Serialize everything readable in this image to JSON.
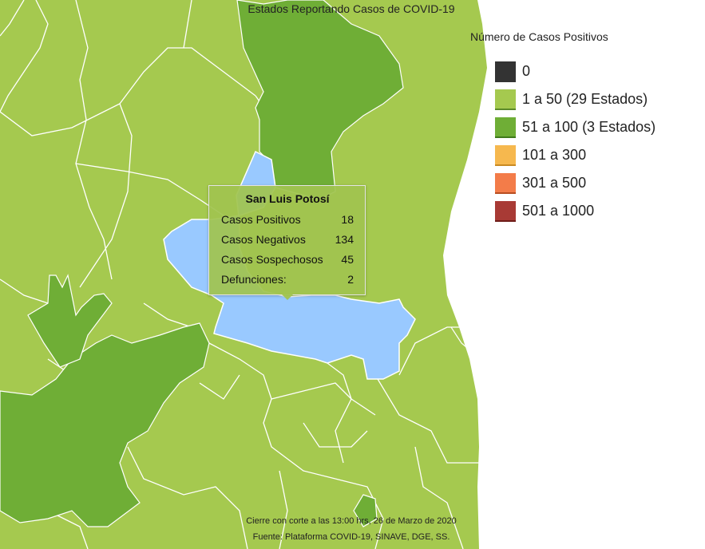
{
  "title": "Estados Reportando Casos de COVID-19",
  "legend": {
    "title": "Número de Casos Positivos",
    "items": [
      {
        "label": "0",
        "color": "#333333"
      },
      {
        "label": "1 a 50 (29 Estados)",
        "color": "#a5c94f"
      },
      {
        "label": "51 a 100 (3 Estados)",
        "color": "#6fae36"
      },
      {
        "label": "101 a 300",
        "color": "#f6b84e"
      },
      {
        "label": "301 a 500",
        "color": "#f37c49"
      },
      {
        "label": "501 a 1000",
        "color": "#a83a35"
      }
    ]
  },
  "tooltip": {
    "state": "San Luis Potosí",
    "rows": [
      {
        "label": "Casos Positivos",
        "value": "18"
      },
      {
        "label": "Casos Negativos",
        "value": "134"
      },
      {
        "label": "Casos Sospechosos",
        "value": "45"
      },
      {
        "label": "Defunciones:",
        "value": "2"
      }
    ]
  },
  "footer": {
    "line1": "Cierre con corte a las 13:00 hrs, 26 de Marzo de 2020",
    "line2": "Fuente: Plataforma COVID-19, SINAVE, DGE, SS."
  },
  "colors": {
    "low": "#a5c94f",
    "mid": "#6fae36",
    "highlight": "#99c9ff",
    "border": "#ffffff",
    "sea": "#ffffff"
  }
}
